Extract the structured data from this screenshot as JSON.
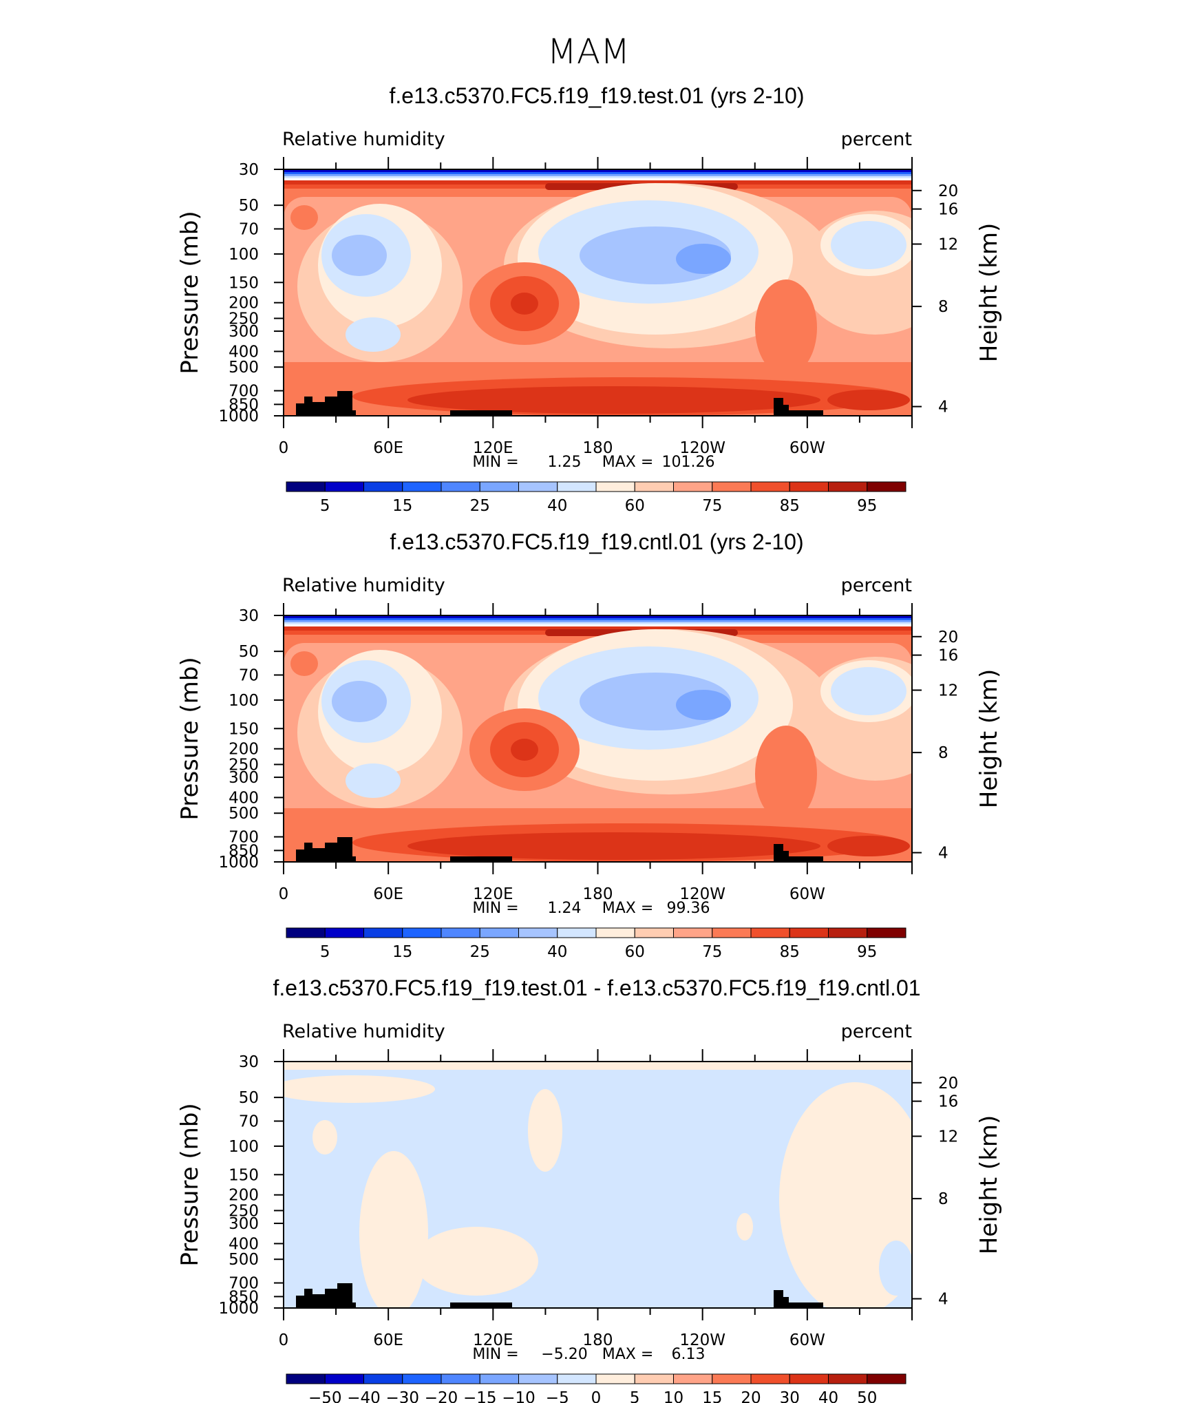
{
  "supertitle": "MAM",
  "chart_data": [
    {
      "type": "heatmap",
      "title": "f.e13.c5370.FC5.f19_f19.test.01 (yrs 2-10)",
      "left_string": "Relative humidity",
      "right_string": "percent",
      "ylabel": "Pressure (mb)",
      "ylabel_right": "Height (km)",
      "xticks": [
        "0",
        "60E",
        "120E",
        "180",
        "120W",
        "60W"
      ],
      "pressure_ticks": [
        "30",
        "50",
        "70",
        "100",
        "150",
        "200",
        "250",
        "300",
        "400",
        "500",
        "700",
        "850",
        "1000"
      ],
      "height_ticks": [
        "20",
        "16",
        "12",
        "8",
        "4"
      ],
      "stats": {
        "min_label": "MIN =",
        "min": "1.25",
        "max_label": "MAX =",
        "max": "101.26"
      },
      "colorbar_labels": [
        "5",
        "15",
        "25",
        "40",
        "60",
        "75",
        "85",
        "95"
      ],
      "colors": [
        "#00007f",
        "#0000c8",
        "#0a3fe5",
        "#1e64ff",
        "#4f86ff",
        "#7aa6ff",
        "#a6c4ff",
        "#d3e6ff",
        "#ffeedd",
        "#ffcdb2",
        "#ffa488",
        "#fb7a55",
        "#f0502c",
        "#dc3418",
        "#b71f0f",
        "#7f0000"
      ]
    },
    {
      "type": "heatmap",
      "title": "f.e13.c5370.FC5.f19_f19.cntl.01 (yrs 2-10)",
      "left_string": "Relative humidity",
      "right_string": "percent",
      "ylabel": "Pressure (mb)",
      "ylabel_right": "Height (km)",
      "xticks": [
        "0",
        "60E",
        "120E",
        "180",
        "120W",
        "60W"
      ],
      "pressure_ticks": [
        "30",
        "50",
        "70",
        "100",
        "150",
        "200",
        "250",
        "300",
        "400",
        "500",
        "700",
        "850",
        "1000"
      ],
      "height_ticks": [
        "20",
        "16",
        "12",
        "8",
        "4"
      ],
      "stats": {
        "min_label": "MIN =",
        "min": "1.24",
        "max_label": "MAX =",
        "max": "99.36"
      },
      "colorbar_labels": [
        "5",
        "15",
        "25",
        "40",
        "60",
        "75",
        "85",
        "95"
      ],
      "colors": [
        "#00007f",
        "#0000c8",
        "#0a3fe5",
        "#1e64ff",
        "#4f86ff",
        "#7aa6ff",
        "#a6c4ff",
        "#d3e6ff",
        "#ffeedd",
        "#ffcdb2",
        "#ffa488",
        "#fb7a55",
        "#f0502c",
        "#dc3418",
        "#b71f0f",
        "#7f0000"
      ]
    },
    {
      "type": "heatmap",
      "title": "f.e13.c5370.FC5.f19_f19.test.01 - f.e13.c5370.FC5.f19_f19.cntl.01",
      "left_string": "Relative humidity",
      "right_string": "percent",
      "ylabel": "Pressure (mb)",
      "ylabel_right": "Height (km)",
      "xticks": [
        "0",
        "60E",
        "120E",
        "180",
        "120W",
        "60W"
      ],
      "pressure_ticks": [
        "30",
        "50",
        "70",
        "100",
        "150",
        "200",
        "250",
        "300",
        "400",
        "500",
        "700",
        "850",
        "1000"
      ],
      "height_ticks": [
        "20",
        "16",
        "12",
        "8",
        "4"
      ],
      "stats": {
        "min_label": "MIN =",
        "min": "−5.20",
        "max_label": "MAX =",
        "max": "6.13"
      },
      "colorbar_labels": [
        "−50",
        "−40",
        "−30",
        "−20",
        "−15",
        "−10",
        "−5",
        "0",
        "5",
        "10",
        "15",
        "20",
        "30",
        "40",
        "50"
      ],
      "colors": [
        "#00007f",
        "#0000c8",
        "#0a3fe5",
        "#1e64ff",
        "#4f86ff",
        "#7aa6ff",
        "#a6c4ff",
        "#d3e6ff",
        "#ffeedd",
        "#ffcdb2",
        "#ffa488",
        "#fb7a55",
        "#f0502c",
        "#dc3418",
        "#b71f0f",
        "#7f0000"
      ]
    }
  ]
}
